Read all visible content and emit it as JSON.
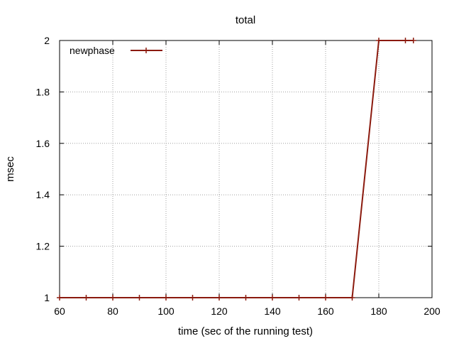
{
  "chart_data": {
    "type": "line",
    "title": "total",
    "xlabel": "time (sec of the running test)",
    "ylabel": "msec",
    "xlim": [
      60,
      200
    ],
    "ylim": [
      1,
      2
    ],
    "xticks": [
      60,
      80,
      100,
      120,
      140,
      160,
      180,
      200
    ],
    "yticks": [
      1,
      1.2,
      1.4,
      1.6,
      1.8,
      2
    ],
    "ytick_labels": [
      "1",
      "1.2",
      "1.4",
      "1.6",
      "1.8",
      "2"
    ],
    "grid": true,
    "legend_position": "top-left",
    "series": [
      {
        "name": "newphase",
        "color": "#8b1a0e",
        "marker": "plus",
        "x": [
          60,
          70,
          80,
          90,
          100,
          110,
          120,
          130,
          140,
          150,
          160,
          170,
          180,
          190,
          193
        ],
        "y": [
          1,
          1,
          1,
          1,
          1,
          1,
          1,
          1,
          1,
          1,
          1,
          1,
          2,
          2,
          2
        ]
      }
    ]
  }
}
